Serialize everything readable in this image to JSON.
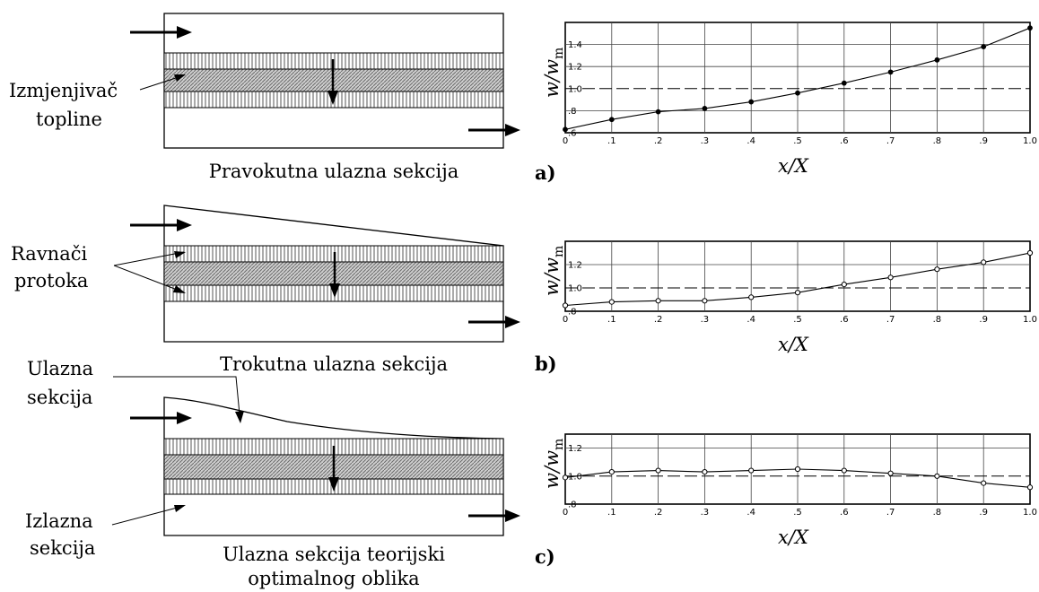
{
  "diagrams": [
    {
      "caption": "Pravokutna ulazna sekcija",
      "callout_lines": [
        "Izmjenjivač",
        "topline"
      ]
    },
    {
      "caption": "Trokutna ulazna sekcija",
      "callout_lines": [
        "Ravnači",
        "protoka"
      ]
    },
    {
      "caption_lines": [
        "Ulazna sekcija teorijski",
        "optimalnog oblika"
      ],
      "callout_top_lines": [
        "Ulazna",
        "sekcija"
      ],
      "callout_bottom_lines": [
        "Izlazna",
        "sekcija"
      ]
    }
  ],
  "plot_panel_labels": [
    "a)",
    "b)",
    "c)"
  ],
  "axis_labels": {
    "ylabel": "w/w_m",
    "xlabel": "x/X"
  },
  "x_ticks": [
    "0",
    ".1",
    ".2",
    ".3",
    ".4",
    ".5",
    ".6",
    ".7",
    ".8",
    ".9",
    "1.0"
  ],
  "chart_data": [
    {
      "type": "line",
      "panel": "a)",
      "xlabel": "x/X",
      "ylabel": "w/w_m",
      "xlim": [
        0,
        1.0
      ],
      "ylim": [
        0.6,
        1.6
      ],
      "y_ticks": [
        ".6",
        ".8",
        "1.0",
        "1.2",
        "1.4"
      ],
      "reference_line": 1.0,
      "marker": "filled",
      "x": [
        0,
        0.1,
        0.2,
        0.3,
        0.4,
        0.5,
        0.6,
        0.7,
        0.8,
        0.9,
        1.0
      ],
      "y": [
        0.63,
        0.72,
        0.79,
        0.82,
        0.88,
        0.96,
        1.05,
        1.15,
        1.26,
        1.38,
        1.55
      ]
    },
    {
      "type": "line",
      "panel": "b)",
      "xlabel": "x/X",
      "ylabel": "w/w_m",
      "xlim": [
        0,
        1.0
      ],
      "ylim": [
        0.8,
        1.4
      ],
      "y_ticks": [
        ".8",
        "1.0",
        "1.2"
      ],
      "reference_line": 1.0,
      "marker": "open",
      "x": [
        0,
        0.1,
        0.2,
        0.3,
        0.4,
        0.5,
        0.6,
        0.7,
        0.8,
        0.9,
        1.0
      ],
      "y": [
        0.85,
        0.88,
        0.89,
        0.89,
        0.92,
        0.96,
        1.03,
        1.09,
        1.16,
        1.22,
        1.3
      ]
    },
    {
      "type": "line",
      "panel": "c)",
      "xlabel": "x/X",
      "ylabel": "w/w_m",
      "xlim": [
        0,
        1.0
      ],
      "ylim": [
        0.8,
        1.3
      ],
      "y_ticks": [
        ".8",
        "1.0",
        "1.2"
      ],
      "reference_line": 1.0,
      "marker": "open",
      "x": [
        0,
        0.1,
        0.2,
        0.3,
        0.4,
        0.5,
        0.6,
        0.7,
        0.8,
        0.9,
        1.0
      ],
      "y": [
        0.99,
        1.03,
        1.04,
        1.03,
        1.04,
        1.05,
        1.04,
        1.02,
        1.0,
        0.95,
        0.92
      ]
    }
  ]
}
